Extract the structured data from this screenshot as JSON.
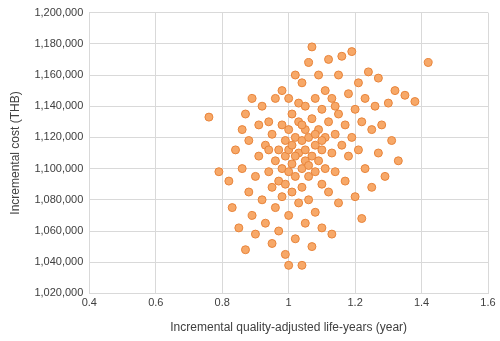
{
  "chart_data": {
    "type": "scatter",
    "xlabel": "Incremental quality-adjusted life-years (year)",
    "ylabel": "Incremental cost (THB)",
    "color": "#f7a868",
    "marker": "circle",
    "grid": true,
    "xlim": [
      0.4,
      1.6
    ],
    "xticks": [
      0.4,
      0.6,
      0.8,
      1,
      1.2,
      1.4,
      1.6
    ],
    "ylim": [
      1020000,
      1200000
    ],
    "yticks": [
      {
        "value": 1020000,
        "label": "1,020,000"
      },
      {
        "value": 1040000,
        "label": "1,040,000"
      },
      {
        "value": 1060000,
        "label": "1,060,000"
      },
      {
        "value": 1080000,
        "label": "1,080,000"
      },
      {
        "value": 1100000,
        "label": "1,100,000"
      },
      {
        "value": 1120000,
        "label": "1,120,000"
      },
      {
        "value": 1140000,
        "label": "1,140,000"
      },
      {
        "value": 1160000,
        "label": "1,160,000"
      },
      {
        "value": 1180000,
        "label": "1,180,000"
      },
      {
        "value": 1200000,
        "label": "1,200,000"
      }
    ],
    "x": [
      0.76,
      0.79,
      0.82,
      0.83,
      0.84,
      0.85,
      0.86,
      0.86,
      0.87,
      0.87,
      0.88,
      0.88,
      0.89,
      0.89,
      0.9,
      0.9,
      0.91,
      0.91,
      0.92,
      0.92,
      0.93,
      0.93,
      0.94,
      0.94,
      0.95,
      0.95,
      0.95,
      0.96,
      0.96,
      0.96,
      0.97,
      0.97,
      0.97,
      0.98,
      0.98,
      0.98,
      0.98,
      0.99,
      0.99,
      0.99,
      0.99,
      1.0,
      1.0,
      1.0,
      1.0,
      1.0,
      1.01,
      1.01,
      1.01,
      1.01,
      1.02,
      1.02,
      1.02,
      1.02,
      1.03,
      1.03,
      1.03,
      1.03,
      1.04,
      1.04,
      1.04,
      1.04,
      1.04,
      1.05,
      1.05,
      1.05,
      1.05,
      1.05,
      1.06,
      1.06,
      1.06,
      1.06,
      1.07,
      1.07,
      1.07,
      1.07,
      1.08,
      1.08,
      1.08,
      1.08,
      1.09,
      1.09,
      1.09,
      1.1,
      1.1,
      1.1,
      1.1,
      1.11,
      1.11,
      1.11,
      1.12,
      1.12,
      1.12,
      1.13,
      1.13,
      1.13,
      1.14,
      1.14,
      1.15,
      1.15,
      1.15,
      1.16,
      1.16,
      1.17,
      1.17,
      1.18,
      1.18,
      1.19,
      1.19,
      1.2,
      1.2,
      1.21,
      1.21,
      1.22,
      1.22,
      1.23,
      1.23,
      1.24,
      1.25,
      1.25,
      1.26,
      1.27,
      1.27,
      1.28,
      1.29,
      1.3,
      1.31,
      1.32,
      1.33,
      1.35,
      1.38,
      1.42,
      1.02,
      1.06,
      1.08,
      0.94,
      1.14,
      1.0,
      1.1,
      1.04
    ],
    "values": [
      1133000,
      1098000,
      1092000,
      1075000,
      1112000,
      1062000,
      1125000,
      1100000,
      1048000,
      1135000,
      1085000,
      1118000,
      1070000,
      1145000,
      1095000,
      1058000,
      1128000,
      1108000,
      1080000,
      1140000,
      1065000,
      1115000,
      1098000,
      1130000,
      1052000,
      1088000,
      1122000,
      1105000,
      1145000,
      1075000,
      1112000,
      1092000,
      1060000,
      1128000,
      1100000,
      1082000,
      1150000,
      1118000,
      1108000,
      1045000,
      1090000,
      1038000,
      1112000,
      1125000,
      1098000,
      1070000,
      1135000,
      1115000,
      1103000,
      1085000,
      1160000,
      1120000,
      1095000,
      1055000,
      1110000,
      1130000,
      1078000,
      1142000,
      1038000,
      1100000,
      1118000,
      1088000,
      1155000,
      1125000,
      1105000,
      1065000,
      1112000,
      1140000,
      1095000,
      1120000,
      1168000,
      1080000,
      1178000,
      1108000,
      1132000,
      1050000,
      1115000,
      1098000,
      1145000,
      1072000,
      1125000,
      1105000,
      1160000,
      1112000,
      1090000,
      1138000,
      1062000,
      1120000,
      1100000,
      1150000,
      1130000,
      1085000,
      1170000,
      1110000,
      1145000,
      1058000,
      1122000,
      1098000,
      1135000,
      1078000,
      1160000,
      1115000,
      1172000,
      1128000,
      1092000,
      1148000,
      1108000,
      1175000,
      1120000,
      1138000,
      1082000,
      1155000,
      1112000,
      1130000,
      1068000,
      1145000,
      1100000,
      1162000,
      1125000,
      1088000,
      1140000,
      1110000,
      1158000,
      1128000,
      1095000,
      1142000,
      1118000,
      1150000,
      1105000,
      1147000,
      1143000,
      1168000,
      1108000,
      1102000,
      1122000,
      1112000,
      1140000,
      1145000,
      1118000,
      1128000
    ]
  }
}
